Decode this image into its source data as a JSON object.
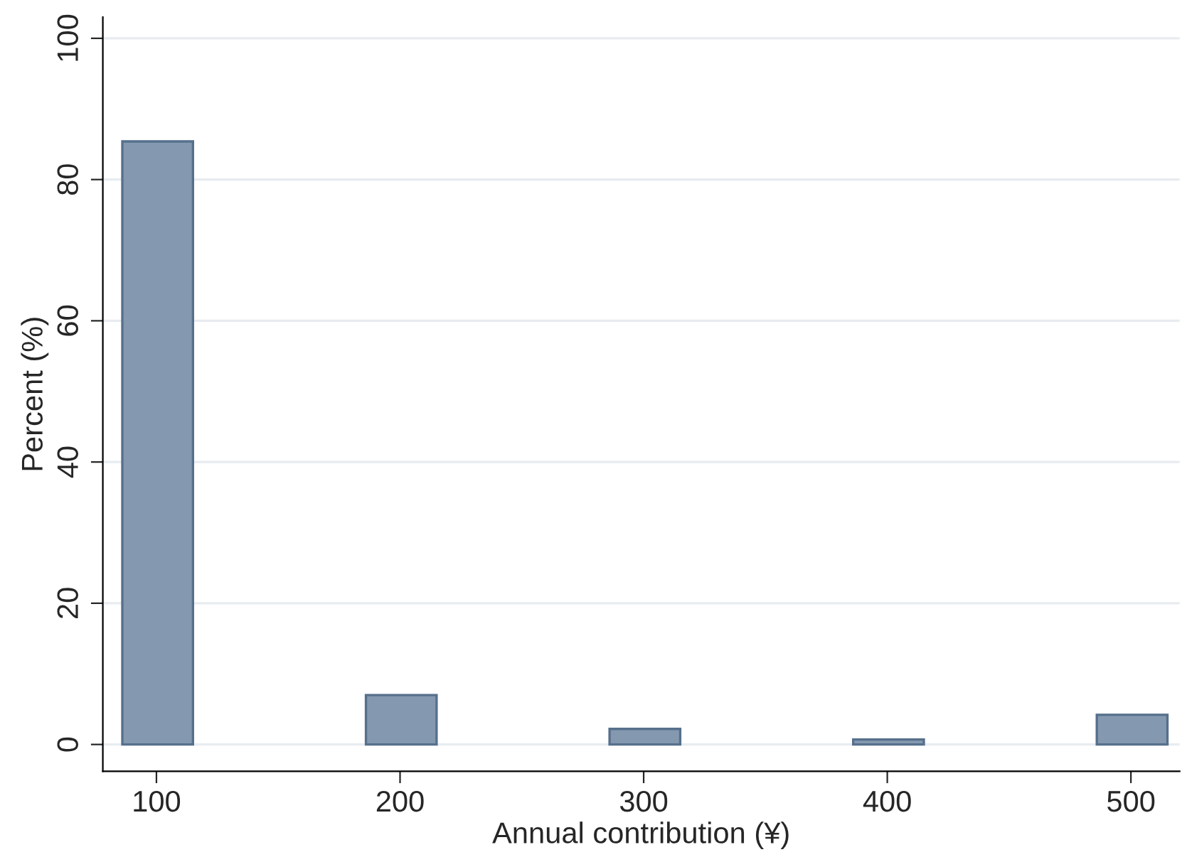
{
  "chart_data": {
    "type": "histogram",
    "xlabel": "Annual contribution (¥)",
    "ylabel": "Percent (%)",
    "bins": [
      86,
      115,
      186,
      215,
      286,
      315,
      386,
      415,
      486,
      515
    ],
    "values": [
      85.4,
      0,
      7.0,
      0,
      2.2,
      0,
      0.7,
      0,
      4.2
    ],
    "color": "#8499b0",
    "xlim": [
      78,
      520
    ],
    "xticks": [
      100,
      200,
      300,
      400,
      500
    ],
    "ylim": [
      -3.8,
      103
    ],
    "yticks": [
      0,
      20,
      40,
      60,
      80,
      100
    ],
    "grid": "y"
  }
}
